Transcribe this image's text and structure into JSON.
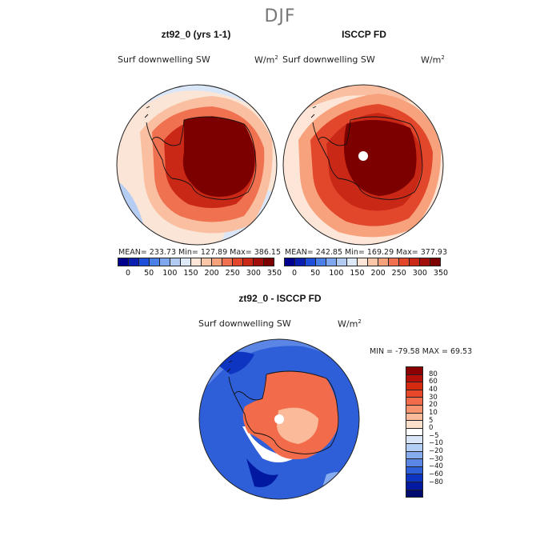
{
  "season": "DJF",
  "panels": [
    {
      "title": "zt92_0 (yrs 1-1)",
      "variable": "Surf downwelling SW",
      "units": "W/m",
      "units_exp": "2",
      "stats": "MEAN= 233.73   Min= 127.89   Max= 386.15",
      "palette": [
        "#00008f",
        "#0a1fb0",
        "#1f4fd8",
        "#4a7fe8",
        "#7fa7ef",
        "#b1cbf4",
        "#dde9f8",
        "#fde6d8",
        "#fbc7a8",
        "#f7a27c",
        "#f07150",
        "#e2472c",
        "#c92817",
        "#a30f08",
        "#7d0000"
      ]
    },
    {
      "title": "ISCCP FD",
      "variable": "Surf downwelling SW",
      "units": "W/m",
      "units_exp": "2",
      "stats": "MEAN= 242.85   Min= 169.29   Max= 377.93",
      "palette": [
        "#00008f",
        "#0a1fb0",
        "#1f4fd8",
        "#4a7fe8",
        "#7fa7ef",
        "#b1cbf4",
        "#dde9f8",
        "#fde6d8",
        "#fbc7a8",
        "#f7a27c",
        "#f07150",
        "#e2472c",
        "#c92817",
        "#a30f08",
        "#7d0000"
      ]
    }
  ],
  "abs_ticks": [
    "0",
    "50",
    "100",
    "150",
    "200",
    "250",
    "300",
    "350"
  ],
  "diff": {
    "title": "zt92_0 - ISCCP FD",
    "variable": "Surf downwelling SW",
    "units": "W/m",
    "units_exp": "2",
    "stats": "MIN = -79.58  MAX =  69.53",
    "ticks": [
      "80",
      "60",
      "40",
      "30",
      "20",
      "10",
      "5",
      "0",
      "−5",
      "−10",
      "−20",
      "−30",
      "−40",
      "−60",
      "−80"
    ],
    "palette": [
      "#8b0000",
      "#b50f07",
      "#d42a10",
      "#e8472a",
      "#f26c4b",
      "#f7946f",
      "#fbbb9b",
      "#fde0cc",
      "#ffffff",
      "#d9e6f9",
      "#b4cdf5",
      "#86abef",
      "#5b86e6",
      "#2e5fd9",
      "#0d35c2",
      "#0019a0",
      "#000b70"
    ]
  }
}
